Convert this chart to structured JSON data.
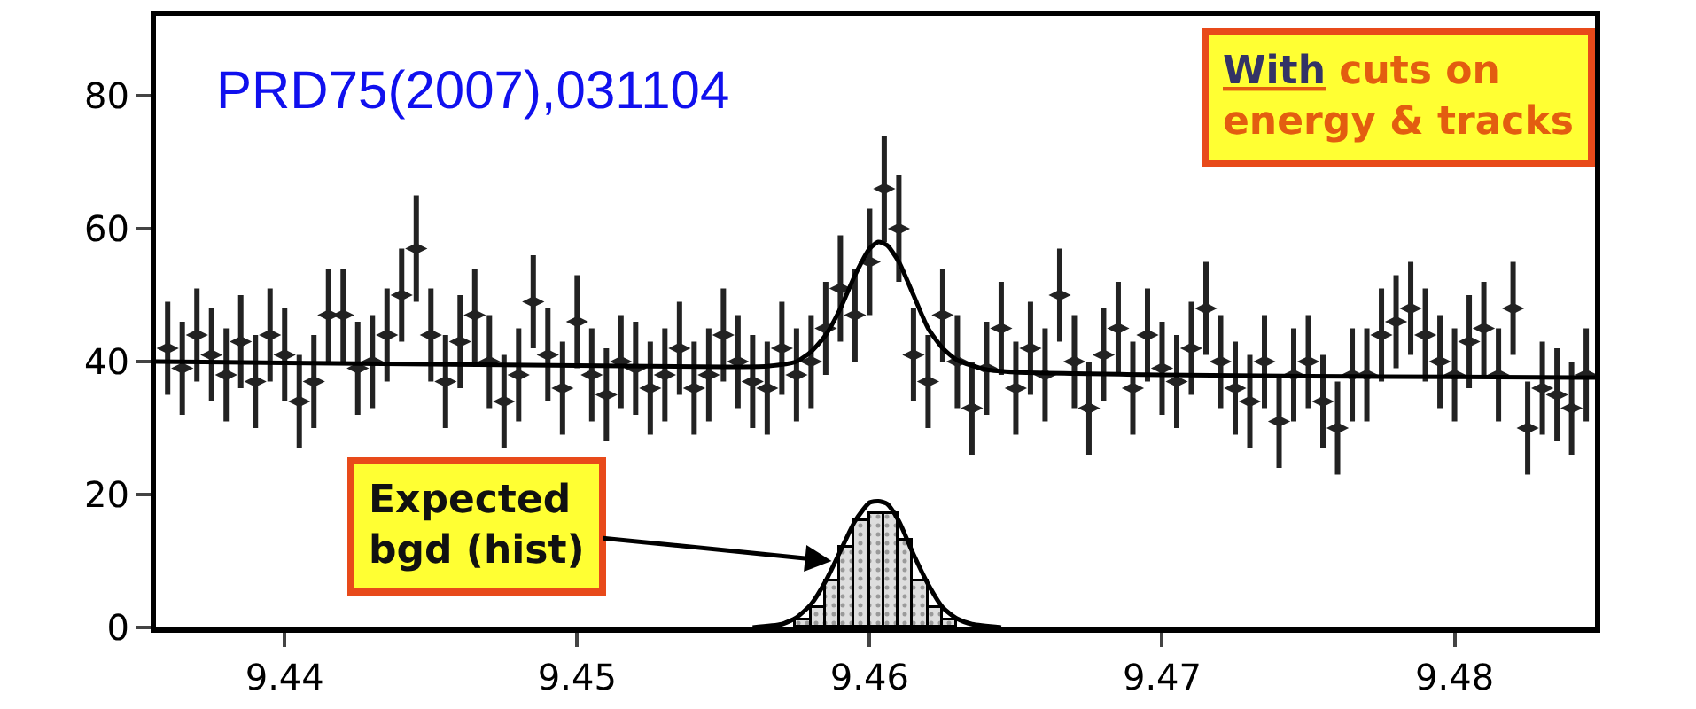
{
  "chart_data": {
    "type": "scatter",
    "xlim": [
      9.4356,
      9.4848
    ],
    "ylim": [
      0,
      92
    ],
    "xticks": [
      9.44,
      9.45,
      9.46,
      9.47,
      9.48
    ],
    "yticks": [
      0,
      20,
      40,
      60,
      80
    ],
    "series": [
      {
        "color": "#222222",
        "x": [
          9.436,
          9.4365,
          9.437,
          9.4375,
          9.438,
          9.4385,
          9.439,
          9.4395,
          9.44,
          9.4405,
          9.441,
          9.4415,
          9.442,
          9.4425,
          9.443,
          9.4435,
          9.444,
          9.4445,
          9.445,
          9.4455,
          9.446,
          9.4465,
          9.447,
          9.4475,
          9.448,
          9.4485,
          9.449,
          9.4495,
          9.45,
          9.4505,
          9.451,
          9.4515,
          9.452,
          9.4525,
          9.453,
          9.4535,
          9.454,
          9.4545,
          9.455,
          9.4555,
          9.456,
          9.4565,
          9.457,
          9.4575,
          9.458,
          9.4585,
          9.459,
          9.4595,
          9.46,
          9.4605,
          9.461,
          9.4615,
          9.462,
          9.4625,
          9.463,
          9.4635,
          9.464,
          9.4645,
          9.465,
          9.4655,
          9.466,
          9.4665,
          9.467,
          9.4675,
          9.468,
          9.4685,
          9.469,
          9.4695,
          9.47,
          9.4705,
          9.471,
          9.4715,
          9.472,
          9.4725,
          9.473,
          9.4735,
          9.474,
          9.4745,
          9.475,
          9.4755,
          9.476,
          9.4765,
          9.477,
          9.4775,
          9.478,
          9.4785,
          9.479,
          9.4795,
          9.48,
          9.4805,
          9.481,
          9.4815,
          9.482,
          9.4825,
          9.483,
          9.4835,
          9.484,
          9.4845
        ],
        "values": [
          42,
          39,
          44,
          41,
          38,
          43,
          37,
          44,
          41,
          34,
          37,
          47,
          47,
          39,
          40,
          44,
          50,
          57,
          44,
          37,
          43,
          47,
          40,
          34,
          38,
          49,
          41,
          36,
          46,
          38,
          35,
          40,
          39,
          36,
          38,
          42,
          36,
          38,
          44,
          40,
          37,
          36,
          42,
          38,
          40,
          45,
          51,
          47,
          55,
          66,
          60,
          41,
          37,
          47,
          40,
          33,
          39,
          45,
          36,
          42,
          38,
          50,
          40,
          33,
          41,
          45,
          36,
          44,
          39,
          37,
          42,
          48,
          40,
          36,
          34,
          40,
          31,
          38,
          40,
          34,
          30,
          38,
          38,
          44,
          46,
          48,
          44,
          40,
          38,
          43,
          45,
          38,
          48,
          30,
          36,
          35,
          33,
          38
        ],
        "errors": [
          7,
          7,
          7,
          7,
          7,
          7,
          7,
          7,
          7,
          7,
          7,
          7,
          7,
          7,
          7,
          7,
          7,
          8,
          7,
          7,
          7,
          7,
          7,
          7,
          7,
          7,
          7,
          7,
          7,
          7,
          7,
          7,
          7,
          7,
          7,
          7,
          7,
          7,
          7,
          7,
          7,
          7,
          7,
          7,
          7,
          7,
          8,
          7,
          8,
          8,
          8,
          7,
          7,
          7,
          7,
          7,
          7,
          7,
          7,
          7,
          7,
          7,
          7,
          7,
          7,
          7,
          7,
          7,
          7,
          7,
          7,
          7,
          7,
          7,
          7,
          7,
          7,
          7,
          7,
          7,
          7,
          7,
          7,
          7,
          7,
          7,
          7,
          7,
          7,
          7,
          7,
          7,
          7,
          7,
          7,
          7,
          7,
          7
        ]
      },
      {
        "type": "line",
        "color": "#000000",
        "x": [
          9.4356,
          9.44,
          9.445,
          9.45,
          9.455,
          9.4565,
          9.4575,
          9.458,
          9.4585,
          9.459,
          9.4595,
          9.46,
          9.4603,
          9.4606,
          9.461,
          9.4615,
          9.462,
          9.4625,
          9.463,
          9.464,
          9.465,
          9.467,
          9.47,
          9.475,
          9.48,
          9.4848
        ],
        "values": [
          40,
          39.8,
          39.6,
          39.4,
          39.2,
          39.3,
          40,
          41.5,
          44,
          48,
          53,
          57,
          58,
          57.5,
          55,
          50,
          45,
          42,
          40.2,
          38.8,
          38.4,
          38.2,
          38,
          37.8,
          37.7,
          37.6
        ]
      },
      {
        "type": "histogram",
        "color": "#000000",
        "bins": [
          9.4575,
          9.458,
          9.4585,
          9.459,
          9.4595,
          9.46,
          9.4605,
          9.461,
          9.4615,
          9.462,
          9.4625,
          9.463
        ],
        "values": [
          1,
          3,
          7,
          12,
          16,
          17,
          17,
          13,
          7,
          3,
          1
        ]
      },
      {
        "type": "line",
        "color": "#000000",
        "x": [
          9.456,
          9.457,
          9.4575,
          9.458,
          9.4585,
          9.459,
          9.4595,
          9.46,
          9.4603,
          9.4606,
          9.461,
          9.4615,
          9.462,
          9.4625,
          9.463,
          9.4635,
          9.4645
        ],
        "values": [
          0,
          0.5,
          1.5,
          3.5,
          7,
          11.5,
          16,
          18.8,
          19,
          18.6,
          16,
          11,
          6.5,
          3,
          1.3,
          0.5,
          0
        ]
      }
    ],
    "annotations": [
      "PRD75(2007),031104",
      "With cuts on\nenergy & tracks",
      {
        "text": "Expected\nbgd (hist)",
        "x": 9.4587,
        "y": 10
      }
    ]
  }
}
